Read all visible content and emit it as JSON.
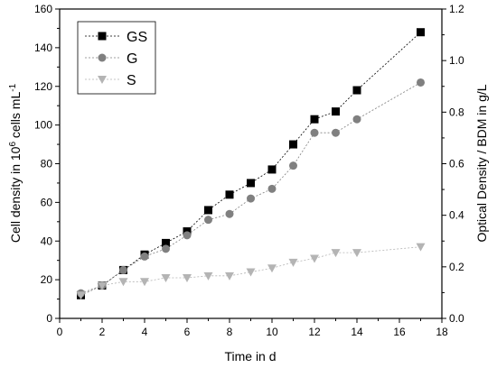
{
  "chart_data": {
    "type": "line",
    "title": "",
    "xlabel": "Time in d",
    "ylabel_left": {
      "main": "Cell density in 10",
      "sup": "6",
      "mid": " cells mL",
      "sup2": "-1"
    },
    "ylabel_right": "Optical Density / BDM in g/L",
    "xlim": [
      0,
      18
    ],
    "ylim_left": [
      0,
      160
    ],
    "ylim_right": [
      0,
      1.2
    ],
    "x_ticks": [
      "0",
      "2",
      "4",
      "6",
      "8",
      "10",
      "12",
      "14",
      "16",
      "18"
    ],
    "y_left_ticks": [
      "0",
      "20",
      "40",
      "60",
      "80",
      "100",
      "120",
      "140",
      "160"
    ],
    "y_right_ticks": [
      "0.0",
      "0.2",
      "0.4",
      "0.6",
      "0.8",
      "1.0",
      "1.2"
    ],
    "grid": false,
    "legend_position": "top-left",
    "series": [
      {
        "name": "GS",
        "marker": "square",
        "color": "#000000",
        "points": [
          [
            1,
            12
          ],
          [
            2,
            17
          ],
          [
            3,
            25
          ],
          [
            4,
            33
          ],
          [
            5,
            39
          ],
          [
            6,
            45
          ],
          [
            7,
            56
          ],
          [
            8,
            64
          ],
          [
            9,
            70
          ],
          [
            10,
            77
          ],
          [
            11,
            90
          ],
          [
            12,
            103
          ],
          [
            13,
            107
          ],
          [
            14,
            118
          ],
          [
            17,
            148
          ]
        ]
      },
      {
        "name": "G",
        "marker": "circle",
        "color": "#808080",
        "points": [
          [
            1,
            13
          ],
          [
            2,
            17
          ],
          [
            3,
            25
          ],
          [
            4,
            32
          ],
          [
            5,
            36
          ],
          [
            6,
            43
          ],
          [
            7,
            51
          ],
          [
            8,
            54
          ],
          [
            9,
            62
          ],
          [
            10,
            67
          ],
          [
            11,
            79
          ],
          [
            12,
            96
          ],
          [
            13,
            96
          ],
          [
            14,
            103
          ],
          [
            17,
            122
          ]
        ]
      },
      {
        "name": "S",
        "marker": "triangle-down",
        "color": "#b4b4b4",
        "points": [
          [
            1,
            12
          ],
          [
            2,
            17
          ],
          [
            3,
            19
          ],
          [
            4,
            19
          ],
          [
            5,
            21
          ],
          [
            6,
            21
          ],
          [
            7,
            22
          ],
          [
            8,
            22
          ],
          [
            9,
            24
          ],
          [
            10,
            26
          ],
          [
            11,
            29
          ],
          [
            12,
            31
          ],
          [
            13,
            34
          ],
          [
            14,
            34
          ],
          [
            17,
            37
          ]
        ]
      }
    ]
  }
}
